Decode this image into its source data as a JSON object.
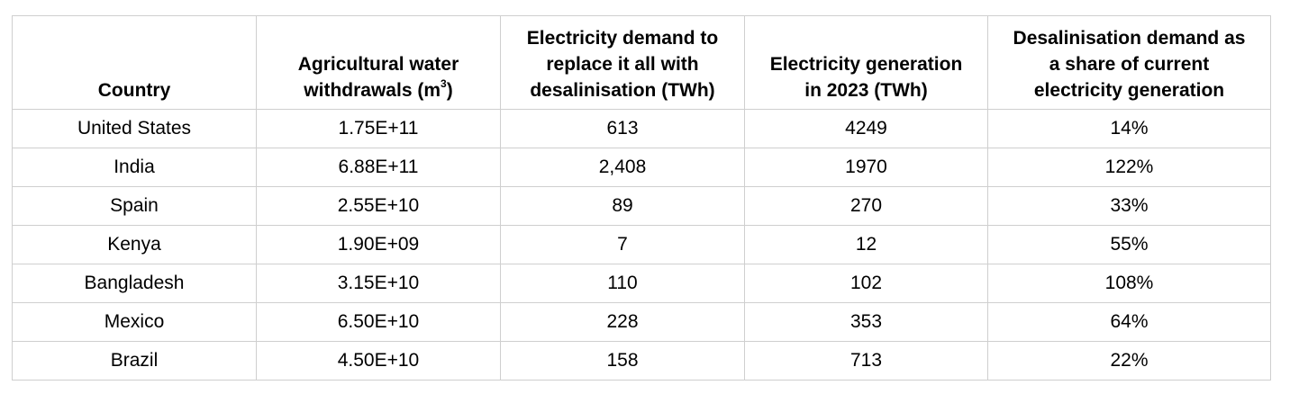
{
  "table": {
    "headers": [
      {
        "lines": [
          "Country"
        ]
      },
      {
        "lines": [
          "Agricultural water",
          "withdrawals (m"
        ],
        "sup": "3",
        "suffix": ")"
      },
      {
        "lines": [
          "Electricity demand to",
          "replace it all with",
          "desalinisation (TWh)"
        ]
      },
      {
        "lines": [
          "Electricity generation",
          "in 2023 (TWh)"
        ]
      },
      {
        "lines": [
          "Desalinisation demand as",
          "a share of current",
          "electricity generation"
        ]
      }
    ],
    "rows": [
      [
        "United States",
        "1.75E+11",
        "613",
        "4249",
        "14%"
      ],
      [
        "India",
        "6.88E+11",
        "2,408",
        "1970",
        "122%"
      ],
      [
        "Spain",
        "2.55E+10",
        "89",
        "270",
        "33%"
      ],
      [
        "Kenya",
        "1.90E+09",
        "7",
        "12",
        "55%"
      ],
      [
        "Bangladesh",
        "3.15E+10",
        "110",
        "102",
        "108%"
      ],
      [
        "Mexico",
        "6.50E+10",
        "228",
        "353",
        "64%"
      ],
      [
        "Brazil",
        "4.50E+10",
        "158",
        "713",
        "22%"
      ]
    ]
  }
}
